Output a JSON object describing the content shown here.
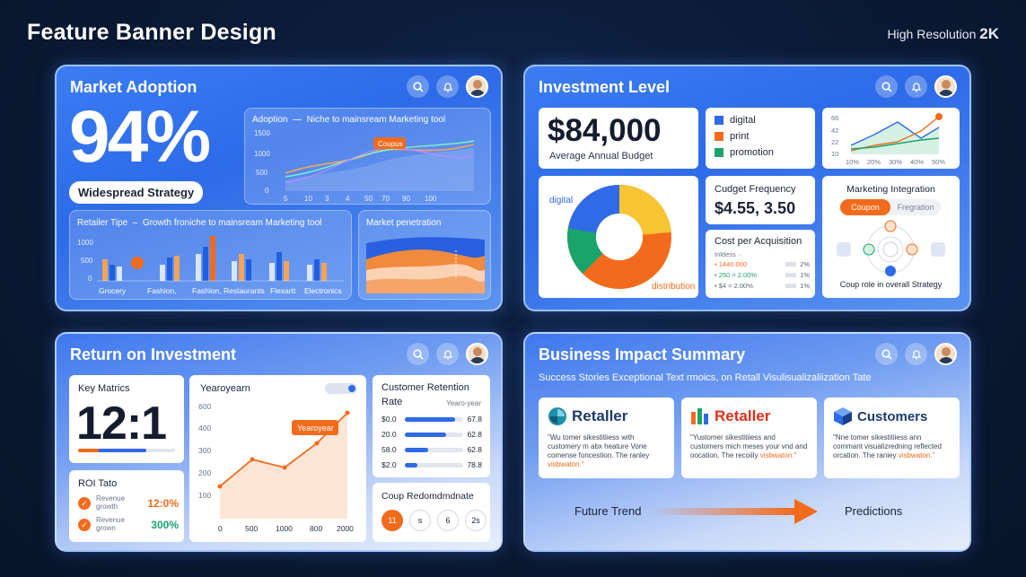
{
  "header": {
    "title": "Feature Banner Design",
    "res_prefix": "High Resolution",
    "res_value": "2K"
  },
  "colors": {
    "accent": "#f26b1d",
    "blue": "#2f6be6",
    "green": "#1aa36b",
    "yellow": "#f7c531"
  },
  "market": {
    "title": "Market Adoption",
    "big": "94%",
    "pill": "Widespread Strategy",
    "adoption": {
      "label": "Adoption",
      "desc": "Niche to mainsream Marketing tool",
      "yticks": [
        "1500",
        "1000",
        "500",
        "0"
      ],
      "xticks": [
        "5",
        "10",
        "3",
        "4",
        "50",
        "70",
        "90",
        "100"
      ],
      "tag": "Coupus"
    },
    "retailer": {
      "title": "Retailer Tipe",
      "desc": "Growth froniche to mainsream Marketing tool",
      "yticks": [
        "1000",
        "500",
        "0"
      ],
      "cats": [
        "Grocery",
        "Fashion,",
        "Fashion, Restaurants",
        "Flexartt",
        "Electronics"
      ]
    },
    "penetration": {
      "title": "Market penetration"
    }
  },
  "investment": {
    "title": "Investment Level",
    "amount": "$84,000",
    "amount_label": "Average Annual Budget",
    "legend": [
      {
        "label": "digital",
        "color": "#2f6be6"
      },
      {
        "label": "print",
        "color": "#f26b1d"
      },
      {
        "label": "promotion",
        "color": "#1aa36b"
      }
    ],
    "line": {
      "yticks": [
        "66",
        "42",
        "22",
        "10"
      ],
      "xticks": [
        "10%",
        "20%",
        "30%",
        "40%",
        "50%"
      ]
    },
    "donut": {
      "top_label": "digital",
      "bottom_label": "distribution"
    },
    "budget_freq": {
      "title": "Cudget Frequency",
      "value": "$4.55, 3.50"
    },
    "cpa": {
      "title": "Cost per Acquisition",
      "sub": "Inldess ··",
      "rows": [
        {
          "a": "1440.000",
          "b": "2%"
        },
        {
          "a": "250 = 2.00%",
          "b": "1%"
        },
        {
          "a": "$4 = 2.00%",
          "b": "1%"
        }
      ]
    },
    "integration": {
      "title": "Marketing Integration",
      "tab_active": "Coupon",
      "tab_other": "Fregration",
      "caption": "Coup role in overall Strategy"
    }
  },
  "roi": {
    "title": "Return on Investment",
    "key": {
      "title": "Key Matrics",
      "value": "12:1"
    },
    "tato": {
      "title": "ROI Tato",
      "rows": [
        {
          "label": "Revenue growth",
          "value": "12:0%",
          "color": "#f26b1d"
        },
        {
          "label": "Revenue grown",
          "value": "300%",
          "color": "#1aa36b"
        }
      ]
    },
    "yoy": {
      "title": "Yearoyearn",
      "tag": "Yearoyear",
      "yticks": [
        "600",
        "400",
        "300",
        "200",
        "100"
      ],
      "xticks": [
        "0",
        "500",
        "1000",
        "800",
        "2000"
      ]
    },
    "retention": {
      "title": "Customer Retention",
      "rate": "Rate",
      "yoy_label": "Yearo-year",
      "rows": [
        {
          "label": "$0.0",
          "value": "67.8",
          "pct": 0.85
        },
        {
          "label": "20.0",
          "value": "62.8",
          "pct": 0.7
        },
        {
          "label": "58.0",
          "value": "62.8",
          "pct": 0.4
        },
        {
          "label": "$2.0",
          "value": "78.8",
          "pct": 0.22
        }
      ]
    },
    "coupon": {
      "title": "Coup Redomdmdnate",
      "circles": [
        "11",
        "s",
        "6",
        "2s"
      ]
    }
  },
  "impact": {
    "title": "Business Impact Summary",
    "subtitle": "Success Stories  Exceptional Text rmoics, on Retall Visulisualizaliization Tate",
    "cards": [
      {
        "name": "Retaller",
        "text": "\"Wu tomer sikestitiiess with customery m abx heature Vone comense foncestion. The ranley",
        "link": "visbwaton.\""
      },
      {
        "name": "Retaller",
        "text": "\"Yustomer sikestitiiess and customers mich meses your vnd and oocation. The recoiily",
        "link": "visbwaton.\""
      },
      {
        "name": "Customers",
        "text": "\"Nne tomer sikestitiiess ann commant visualizredning reflected orcation. The raniey",
        "link": "visbwaton.\""
      }
    ],
    "trend_left": "Future Trend",
    "trend_right": "Predictions"
  }
}
